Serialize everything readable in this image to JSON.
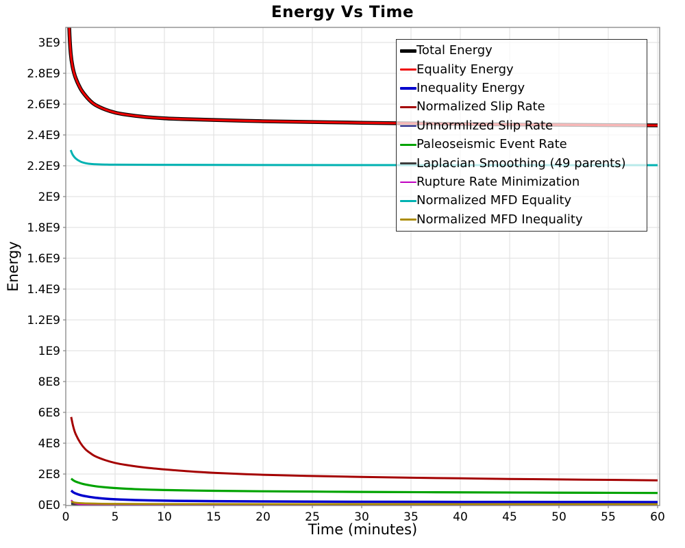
{
  "chart_data": {
    "type": "line",
    "title": "Energy Vs Time",
    "xlabel": "Time (minutes)",
    "ylabel": "Energy",
    "xlim": [
      0,
      60.2
    ],
    "ylim": [
      0,
      3098000000.0
    ],
    "grid": true,
    "legend_position": "top-right",
    "x_ticks": [
      0,
      5,
      10,
      15,
      20,
      25,
      30,
      35,
      40,
      45,
      50,
      55,
      60
    ],
    "y_ticks": [
      {
        "value": 0,
        "label": "0E0"
      },
      {
        "value": 200000000.0,
        "label": "2E8"
      },
      {
        "value": 400000000.0,
        "label": "4E8"
      },
      {
        "value": 600000000.0,
        "label": "6E8"
      },
      {
        "value": 800000000.0,
        "label": "8E8"
      },
      {
        "value": 1000000000.0,
        "label": "1E9"
      },
      {
        "value": 1200000000.0,
        "label": "1.2E9"
      },
      {
        "value": 1400000000.0,
        "label": "1.4E9"
      },
      {
        "value": 1600000000.0,
        "label": "1.6E9"
      },
      {
        "value": 1800000000.0,
        "label": "1.8E9"
      },
      {
        "value": 2000000000.0,
        "label": "2E9"
      },
      {
        "value": 2200000000.0,
        "label": "2.2E9"
      },
      {
        "value": 2400000000.0,
        "label": "2.4E9"
      },
      {
        "value": 2600000000.0,
        "label": "2.6E9"
      },
      {
        "value": 2800000000.0,
        "label": "2.8E9"
      },
      {
        "value": 3000000000.0,
        "label": "3E9"
      }
    ],
    "series": [
      {
        "name": "Total Energy",
        "color": "#000000",
        "width": 5.5,
        "points": [
          [
            0.3,
            3300000000.0
          ],
          [
            0.35,
            3100000000.0
          ],
          [
            0.5,
            2930000000.0
          ],
          [
            0.7,
            2840000000.0
          ],
          [
            1,
            2770000000.0
          ],
          [
            1.5,
            2700000000.0
          ],
          [
            2,
            2655000000.0
          ],
          [
            2.5,
            2620000000.0
          ],
          [
            3,
            2595000000.0
          ],
          [
            4,
            2565000000.0
          ],
          [
            5,
            2545000000.0
          ],
          [
            6,
            2533000000.0
          ],
          [
            8,
            2517000000.0
          ],
          [
            10,
            2508000000.0
          ],
          [
            12,
            2503000000.0
          ],
          [
            15,
            2497000000.0
          ],
          [
            20,
            2489000000.0
          ],
          [
            25,
            2484000000.0
          ],
          [
            30,
            2479000000.0
          ],
          [
            35,
            2475000000.0
          ],
          [
            40,
            2471000000.0
          ],
          [
            45,
            2468000000.0
          ],
          [
            50,
            2466000000.0
          ],
          [
            55,
            2464000000.0
          ],
          [
            60,
            2462000000.0
          ]
        ]
      },
      {
        "name": "Equality Energy",
        "color": "#ee0000",
        "width": 3.2,
        "points": [
          [
            0.3,
            3300000000.0
          ],
          [
            0.35,
            3100000000.0
          ],
          [
            0.5,
            2930000000.0
          ],
          [
            0.7,
            2840000000.0
          ],
          [
            1,
            2770000000.0
          ],
          [
            1.5,
            2700000000.0
          ],
          [
            2,
            2655000000.0
          ],
          [
            2.5,
            2620000000.0
          ],
          [
            3,
            2595000000.0
          ],
          [
            4,
            2565000000.0
          ],
          [
            5,
            2545000000.0
          ],
          [
            6,
            2533000000.0
          ],
          [
            8,
            2517000000.0
          ],
          [
            10,
            2508000000.0
          ],
          [
            12,
            2503000000.0
          ],
          [
            15,
            2497000000.0
          ],
          [
            20,
            2489000000.0
          ],
          [
            25,
            2484000000.0
          ],
          [
            30,
            2479000000.0
          ],
          [
            35,
            2475000000.0
          ],
          [
            40,
            2471000000.0
          ],
          [
            45,
            2468000000.0
          ],
          [
            50,
            2466000000.0
          ],
          [
            55,
            2464000000.0
          ],
          [
            60,
            2462000000.0
          ]
        ]
      },
      {
        "name": "Inequality Energy",
        "color": "#0000cd",
        "width": 3.5,
        "points": [
          [
            0.55,
            93000000.0
          ],
          [
            0.75,
            82000000.0
          ],
          [
            1,
            74000000.0
          ],
          [
            1.5,
            63000000.0
          ],
          [
            2,
            56000000.0
          ],
          [
            3,
            46000000.0
          ],
          [
            4,
            40000000.0
          ],
          [
            5,
            36000000.0
          ],
          [
            7,
            31000000.0
          ],
          [
            10,
            27000000.0
          ],
          [
            15,
            24000000.0
          ],
          [
            20,
            22000000.0
          ],
          [
            30,
            20000000.0
          ],
          [
            40,
            19000000.0
          ],
          [
            50,
            18500000.0
          ],
          [
            60,
            18000000.0
          ]
        ]
      },
      {
        "name": "Normalized Slip Rate",
        "color": "#a40000",
        "width": 3,
        "points": [
          [
            0.55,
            570000000.0
          ],
          [
            0.75,
            510000000.0
          ],
          [
            1,
            460000000.0
          ],
          [
            1.5,
            400000000.0
          ],
          [
            2,
            360000000.0
          ],
          [
            2.5,
            335000000.0
          ],
          [
            3,
            315000000.0
          ],
          [
            4,
            290000000.0
          ],
          [
            5,
            272000000.0
          ],
          [
            6,
            260000000.0
          ],
          [
            8,
            242000000.0
          ],
          [
            10,
            230000000.0
          ],
          [
            12,
            220000000.0
          ],
          [
            15,
            208000000.0
          ],
          [
            20,
            195000000.0
          ],
          [
            25,
            187000000.0
          ],
          [
            30,
            181000000.0
          ],
          [
            35,
            176000000.0
          ],
          [
            40,
            172000000.0
          ],
          [
            45,
            168000000.0
          ],
          [
            50,
            165000000.0
          ],
          [
            55,
            162000000.0
          ],
          [
            60,
            159000000.0
          ]
        ]
      },
      {
        "name": "Unnormlized Slip Rate",
        "color": "#232388",
        "width": 2.5,
        "points": [
          [
            0.55,
            13000000.0
          ],
          [
            1,
            9000000.0
          ],
          [
            2,
            6000000.0
          ],
          [
            3,
            5000000.0
          ],
          [
            5,
            4500000.0
          ],
          [
            10,
            4000000.0
          ],
          [
            20,
            3800000.0
          ],
          [
            40,
            3600000.0
          ],
          [
            60,
            3500000.0
          ]
        ]
      },
      {
        "name": "Paleoseismic Event Rate",
        "color": "#00a300",
        "width": 3.2,
        "points": [
          [
            0.55,
            170000000.0
          ],
          [
            0.75,
            160000000.0
          ],
          [
            1,
            151000000.0
          ],
          [
            1.5,
            140000000.0
          ],
          [
            2,
            132000000.0
          ],
          [
            3,
            121000000.0
          ],
          [
            4,
            114000000.0
          ],
          [
            5,
            109000000.0
          ],
          [
            7,
            102000000.0
          ],
          [
            10,
            96000000.0
          ],
          [
            15,
            91000000.0
          ],
          [
            20,
            88000000.0
          ],
          [
            25,
            86000000.0
          ],
          [
            30,
            84000000.0
          ],
          [
            40,
            81000000.0
          ],
          [
            50,
            79000000.0
          ],
          [
            60,
            77000000.0
          ]
        ]
      },
      {
        "name": "Laplacian Smoothing (49 parents)",
        "color": "#3c3c3c",
        "width": 2.5,
        "points": [
          [
            0.55,
            5000000.0
          ],
          [
            1,
            3000000.0
          ],
          [
            2,
            2000000.0
          ],
          [
            5,
            1500000.0
          ],
          [
            10,
            1300000.0
          ],
          [
            30,
            1250000.0
          ],
          [
            60,
            1200000.0
          ]
        ]
      },
      {
        "name": "Rupture Rate Minimization",
        "color": "#c000c0",
        "width": 2.5,
        "points": [
          [
            0.55,
            30000000.0
          ],
          [
            0.7,
            20000000.0
          ],
          [
            0.9,
            12000000.0
          ],
          [
            1.2,
            6000000.0
          ],
          [
            1.5,
            3500000.0
          ],
          [
            2,
            2000000.0
          ],
          [
            3,
            1200000.0
          ],
          [
            5,
            1000000.0
          ],
          [
            10,
            900000.0
          ],
          [
            30,
            850000.0
          ],
          [
            60,
            800000.0
          ]
        ]
      },
      {
        "name": "Normalized MFD Equality",
        "color": "#00b2b2",
        "width": 3,
        "points": [
          [
            0.5,
            2302000000.0
          ],
          [
            0.7,
            2272000000.0
          ],
          [
            1,
            2248000000.0
          ],
          [
            1.5,
            2227000000.0
          ],
          [
            2,
            2217000000.0
          ],
          [
            2.5,
            2212000000.0
          ],
          [
            3,
            2210000000.0
          ],
          [
            4,
            2208000000.0
          ],
          [
            5,
            2207000000.0
          ],
          [
            10,
            2206000000.0
          ],
          [
            20,
            2205000000.0
          ],
          [
            40,
            2204000000.0
          ],
          [
            60,
            2204000000.0
          ]
        ]
      },
      {
        "name": "Normalized MFD Inequality",
        "color": "#ab8b00",
        "width": 2.8,
        "points": [
          [
            0.55,
            21000000.0
          ],
          [
            0.75,
            17000000.0
          ],
          [
            1,
            14000000.0
          ],
          [
            1.5,
            11000000.0
          ],
          [
            2,
            9500000.0
          ],
          [
            3,
            8000000.0
          ],
          [
            5,
            6500000.0
          ],
          [
            10,
            5500000.0
          ],
          [
            20,
            5000000.0
          ],
          [
            40,
            4600000.0
          ],
          [
            60,
            4400000.0
          ]
        ]
      }
    ]
  },
  "colors": {
    "background": "#ffffff",
    "grid": "#e3e3e3",
    "plot_border": "#848484",
    "tick": "#848484",
    "legend_border": "#2b2b2b",
    "text": "#000000"
  }
}
